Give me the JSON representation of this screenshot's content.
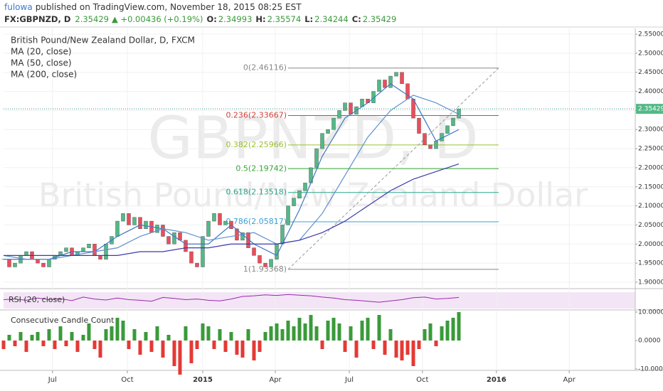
{
  "header": {
    "author": "fulowa",
    "published": "published on TradingView.com, November 18, 2015 08:25 EST",
    "symbol": "FX:GBPNZD, D",
    "last": "2.35429",
    "change": "▲ +0.00436 (+0.19%)",
    "ohlc": [
      {
        "key": "O:",
        "value": "2.34993"
      },
      {
        "key": "H:",
        "value": "2.35574"
      },
      {
        "key": "L:",
        "value": "2.34244"
      },
      {
        "key": "C:",
        "value": "2.35429"
      }
    ]
  },
  "legend": [
    "British Pound/New Zealand Dollar, D, FXCM",
    "MA (20, close)",
    "MA (50, close)",
    "MA (200, close)"
  ],
  "watermark": [
    "GBPNZD, D",
    "British Pound/New Zealand Dollar"
  ],
  "chart_data": {
    "type": "candlestick",
    "xlim": [
      0,
      111
    ],
    "xticks": [
      {
        "value": 8.6,
        "label": "Jul"
      },
      {
        "value": 21.75,
        "label": "Oct"
      },
      {
        "value": 35,
        "label": "2015",
        "bold": true
      },
      {
        "value": 47.75,
        "label": "Apr"
      },
      {
        "value": 60.75,
        "label": "Jul"
      },
      {
        "value": 73.6,
        "label": "Oct"
      },
      {
        "value": 86.6,
        "label": "2016",
        "bold": true
      },
      {
        "value": 99.4,
        "label": "Apr"
      }
    ],
    "ylim": [
      1.885,
      2.565
    ],
    "yticks": [
      {
        "value": 1.9,
        "label": "1.90000"
      },
      {
        "value": 1.95,
        "label": "1.95000"
      },
      {
        "value": 2.0,
        "label": "2.00000"
      },
      {
        "value": 2.05,
        "label": "2.05000"
      },
      {
        "value": 2.1,
        "label": "2.10000"
      },
      {
        "value": 2.15,
        "label": "2.15000"
      },
      {
        "value": 2.2,
        "label": "2.20000"
      },
      {
        "value": 2.25,
        "label": "2.25000"
      },
      {
        "value": 2.3,
        "label": "2.30000"
      },
      {
        "value": 2.35,
        "label": "2.35000"
      },
      {
        "value": 2.4,
        "label": "2.40000"
      },
      {
        "value": 2.45,
        "label": "2.45000"
      },
      {
        "value": 2.5,
        "label": "2.50000"
      },
      {
        "value": 2.55,
        "label": "2.55000"
      }
    ],
    "grid": true,
    "up_color": "#53b987",
    "down_color": "#eb4d5c",
    "x": [
      0,
      1,
      2,
      3,
      4,
      5,
      6,
      7,
      8,
      9,
      10,
      11,
      12,
      13,
      14,
      15,
      16,
      17,
      18,
      19,
      20,
      21,
      22,
      23,
      24,
      25,
      26,
      27,
      28,
      29,
      30,
      31,
      32,
      33,
      34,
      35,
      36,
      37,
      38,
      39,
      40,
      41,
      42,
      43,
      44,
      45,
      46,
      47,
      48,
      49,
      50,
      51,
      52,
      53,
      54,
      55,
      56,
      57,
      58,
      59,
      60,
      61,
      62,
      63,
      64,
      65,
      66,
      67,
      68,
      69,
      70,
      71,
      72,
      73,
      74,
      75,
      76,
      77,
      78,
      79,
      80
    ],
    "close": [
      1.96,
      1.94,
      1.95,
      1.97,
      1.98,
      1.96,
      1.95,
      1.94,
      1.96,
      1.97,
      1.98,
      1.99,
      1.97,
      1.98,
      1.99,
      2.0,
      1.97,
      1.96,
      2.0,
      2.02,
      2.06,
      2.08,
      2.05,
      2.07,
      2.04,
      2.06,
      2.03,
      2.05,
      2.02,
      2.0,
      2.03,
      2.01,
      1.98,
      1.95,
      1.94,
      2.02,
      2.06,
      2.08,
      2.05,
      2.06,
      2.04,
      2.01,
      2.03,
      1.99,
      1.97,
      1.95,
      1.94,
      1.96,
      2.0,
      2.05,
      2.1,
      2.12,
      2.14,
      2.16,
      2.2,
      2.25,
      2.29,
      2.3,
      2.33,
      2.35,
      2.37,
      2.34,
      2.36,
      2.38,
      2.37,
      2.4,
      2.43,
      2.41,
      2.44,
      2.45,
      2.42,
      2.38,
      2.33,
      2.29,
      2.26,
      2.25,
      2.27,
      2.29,
      2.31,
      2.33,
      2.35429
    ],
    "last_price": {
      "value": 2.35429,
      "label": "2.35429"
    },
    "ma": {
      "x": [
        0,
        4,
        8,
        12,
        16,
        20,
        24,
        28,
        32,
        36,
        40,
        44,
        48,
        52,
        56,
        60,
        64,
        68,
        72,
        76,
        80
      ],
      "series": [
        {
          "name": "MA (20, close)",
          "color": "#3f77c4",
          "values": [
            1.96,
            1.96,
            1.96,
            1.98,
            1.98,
            2.02,
            2.05,
            2.04,
            2.0,
            2.0,
            2.05,
            2.0,
            1.97,
            2.09,
            2.23,
            2.33,
            2.37,
            2.42,
            2.38,
            2.27,
            2.3
          ]
        },
        {
          "name": "MA (50, close)",
          "color": "#5d8fcf",
          "values": [
            1.97,
            1.96,
            1.96,
            1.97,
            1.98,
            1.99,
            2.02,
            2.04,
            2.03,
            2.01,
            2.02,
            2.03,
            2.0,
            2.01,
            2.08,
            2.18,
            2.28,
            2.35,
            2.39,
            2.37,
            2.34
          ]
        },
        {
          "name": "MA (200, close)",
          "color": "#3a3aa8",
          "values": [
            1.97,
            1.97,
            1.97,
            1.97,
            1.97,
            1.97,
            1.98,
            1.98,
            1.99,
            1.99,
            2.0,
            2.0,
            2.0,
            2.01,
            2.03,
            2.06,
            2.1,
            2.14,
            2.17,
            2.19,
            2.21
          ]
        }
      ]
    },
    "fib": {
      "x_range": [
        50,
        87
      ],
      "levels": [
        {
          "price": 2.46116,
          "label": "0(2.46116)",
          "color": "#888888"
        },
        {
          "price": 2.33667,
          "label": "0.236(2.33667)",
          "color": "#d0443c"
        },
        {
          "price": 2.25966,
          "label": "0.382(2.25966)",
          "color": "#9ac031"
        },
        {
          "price": 2.19742,
          "label": "0.5(2.19742)",
          "color": "#3aa83a"
        },
        {
          "price": 2.13518,
          "label": "0.618(2.13518)",
          "color": "#2aa58a"
        },
        {
          "price": 2.05817,
          "label": "0.786(2.05817)",
          "color": "#3d9fd0"
        },
        {
          "price": 1.93368,
          "label": "1(1.93368)",
          "color": "#888888"
        }
      ]
    },
    "rsi": {
      "name": "RSI (20, close)",
      "color": "#9c27b0",
      "ylim": [
        20,
        80
      ],
      "x": [
        0,
        2,
        4,
        6,
        8,
        10,
        12,
        14,
        16,
        18,
        20,
        22,
        24,
        26,
        28,
        30,
        32,
        34,
        36,
        38,
        40,
        42,
        44,
        46,
        48,
        50,
        52,
        54,
        56,
        58,
        60,
        62,
        64,
        66,
        68,
        70,
        72,
        74,
        76,
        78,
        80
      ],
      "values": [
        50,
        52,
        48,
        55,
        50,
        53,
        47,
        58,
        52,
        49,
        55,
        50,
        48,
        45,
        57,
        54,
        50,
        52,
        48,
        46,
        52,
        60,
        62,
        65,
        63,
        66,
        64,
        62,
        58,
        55,
        50,
        48,
        45,
        42,
        46,
        50,
        56,
        58,
        52,
        54,
        57
      ]
    },
    "ccc": {
      "name": "Consecutive Candle Count",
      "ylim": [
        -10.5,
        10.5
      ],
      "yticks": [
        {
          "value": 10,
          "label": "10.0000"
        },
        {
          "value": 0,
          "label": "0.0000"
        },
        {
          "value": -10,
          "label": "-10.0000"
        }
      ],
      "up_color": "#3a9a3a",
      "down_color": "#e53935",
      "values": [
        -3,
        2,
        -2,
        3,
        -4,
        2,
        3,
        -2,
        4,
        -3,
        5,
        -2,
        3,
        -4,
        2,
        6,
        -3,
        -6,
        4,
        5,
        8,
        7,
        -3,
        4,
        -5,
        3,
        -4,
        5,
        -6,
        2,
        -9,
        -12,
        5,
        -8,
        -3,
        6,
        5,
        -3,
        4,
        -4,
        3,
        -5,
        -6,
        4,
        -7,
        -4,
        3,
        5,
        6,
        4,
        7,
        5,
        8,
        6,
        9,
        5,
        -3,
        7,
        8,
        6,
        -4,
        5,
        -6,
        7,
        8,
        -3,
        9,
        -5,
        4,
        -6,
        -7,
        -5,
        -9,
        -3,
        4,
        6,
        -2,
        5,
        7,
        8,
        10
      ]
    }
  }
}
